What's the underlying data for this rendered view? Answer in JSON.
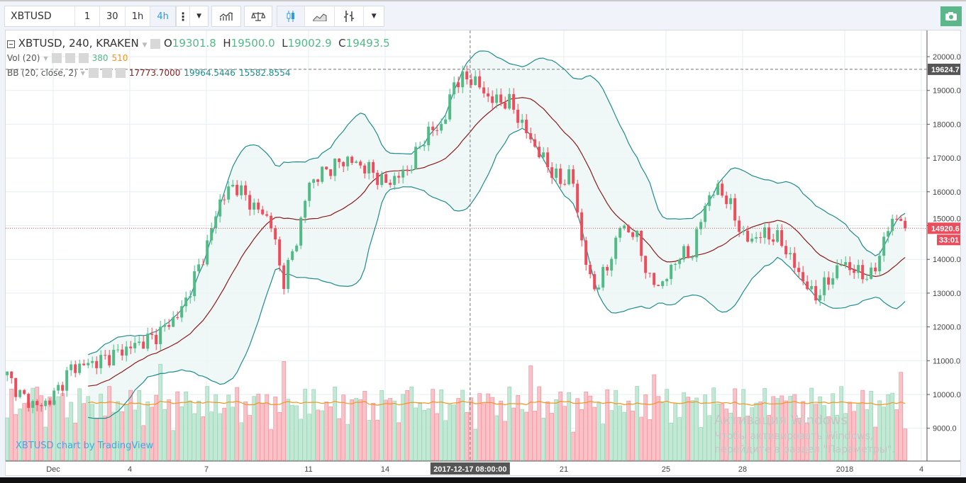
{
  "toolbar": {
    "symbol": "XBTUSD",
    "intervals": [
      "1",
      "30",
      "1h",
      "4h"
    ],
    "active_interval": "4h",
    "icons": [
      "more-icon",
      "chevron-down-icon",
      "indicators-icon",
      "compare-icon",
      "candles-icon",
      "area-chart-icon",
      "bars-icon",
      "chevron-down-icon",
      "camera-icon"
    ]
  },
  "legend": {
    "title": "XBTUSD, 240, KRAKEN",
    "o_label": "O",
    "o": "19301.8",
    "h_label": "H",
    "h": "19500.0",
    "l_label": "L",
    "l": "19002.9",
    "c_label": "C",
    "c": "19493.5",
    "vol_title": "Vol (20)",
    "vol": "380",
    "vol_ma": "510",
    "bb_title": "BB (20, close, 2)",
    "bb_mid": "17773.7000",
    "bb_upper": "19964.5446",
    "bb_lower": "15582.8554"
  },
  "watermark": "XBTUSD chart by TradingView",
  "windows": {
    "title": "Активация Windows",
    "text": "Чтобы активировать Windows, перейдите в раздел \"Параметры\"."
  },
  "chart_data": {
    "type": "candlestick",
    "title": "XBTUSD, 240, KRAKEN",
    "candles_per_day": 6,
    "price_path_day_offsets_from_dec1": [
      [
        -1.8,
        10570
      ],
      [
        -1.25,
        9940
      ],
      [
        -0.55,
        9620
      ],
      [
        0,
        9940
      ],
      [
        0.7,
        10780
      ],
      [
        1.8,
        10990
      ],
      [
        3,
        11400
      ],
      [
        4,
        11720
      ],
      [
        5,
        12450
      ],
      [
        6,
        14340
      ],
      [
        6.5,
        15700
      ],
      [
        7.1,
        16230
      ],
      [
        7.8,
        15600
      ],
      [
        8.5,
        15180
      ],
      [
        9,
        13290
      ],
      [
        9.6,
        14760
      ],
      [
        10,
        16230
      ],
      [
        10.7,
        16650
      ],
      [
        11.5,
        16960
      ],
      [
        12.4,
        16650
      ],
      [
        13,
        16230
      ],
      [
        13.9,
        16650
      ],
      [
        14.6,
        17700
      ],
      [
        15.3,
        18010
      ],
      [
        15.7,
        19270
      ],
      [
        16.4,
        19370
      ],
      [
        17.1,
        18740
      ],
      [
        17.9,
        18640
      ],
      [
        18.5,
        17800
      ],
      [
        19,
        17170
      ],
      [
        19.9,
        16230
      ],
      [
        20.3,
        16650
      ],
      [
        20.6,
        14970
      ],
      [
        21.1,
        13080
      ],
      [
        21.7,
        13710
      ],
      [
        22.2,
        14970
      ],
      [
        22.8,
        14760
      ],
      [
        23.4,
        13290
      ],
      [
        23.9,
        13290
      ],
      [
        24.5,
        14130
      ],
      [
        25,
        14130
      ],
      [
        25.6,
        15810
      ],
      [
        26.1,
        16120
      ],
      [
        26.5,
        15600
      ],
      [
        27.1,
        14550
      ],
      [
        27.9,
        14760
      ],
      [
        28.5,
        14550
      ],
      [
        29.1,
        13710
      ],
      [
        29.8,
        12870
      ],
      [
        30.3,
        13290
      ],
      [
        30.9,
        13920
      ],
      [
        31.5,
        13600
      ],
      [
        32.1,
        13500
      ],
      [
        32.6,
        14760
      ],
      [
        33.1,
        15390
      ],
      [
        33.36,
        14920
      ]
    ],
    "y_ticks": [
      9000,
      10000,
      11000,
      12000,
      13000,
      14000,
      15000,
      16000,
      17000,
      18000,
      19000,
      20000
    ],
    "ylim": [
      8000,
      20300
    ],
    "x_ticks": [
      {
        "day": 0,
        "label": "Dec"
      },
      {
        "day": 3,
        "label": "4"
      },
      {
        "day": 6,
        "label": "7"
      },
      {
        "day": 10,
        "label": "11"
      },
      {
        "day": 13,
        "label": "14"
      },
      {
        "day": 20,
        "label": "21"
      },
      {
        "day": 24,
        "label": "25"
      },
      {
        "day": 27,
        "label": "28"
      },
      {
        "day": 31,
        "label": "2018"
      },
      {
        "day": 34,
        "label": "4"
      }
    ],
    "crosshair": {
      "day": 16.33,
      "time_label": "2017-12-17 08:00:00",
      "price": 19624.7,
      "price_label": "19624.7"
    },
    "last_price": {
      "value": 14920.6,
      "label": "14920.6",
      "countdown": "33:01"
    },
    "indicators": {
      "bollinger": {
        "length": 20,
        "mult": 2
      },
      "volume_ma": 20
    },
    "colors": {
      "up": "#53b987",
      "down": "#eb4d5c",
      "bb_mid": "#8b1a1a",
      "bb_band": "#1e8c8c",
      "vol_ma": "#f7931a"
    }
  }
}
